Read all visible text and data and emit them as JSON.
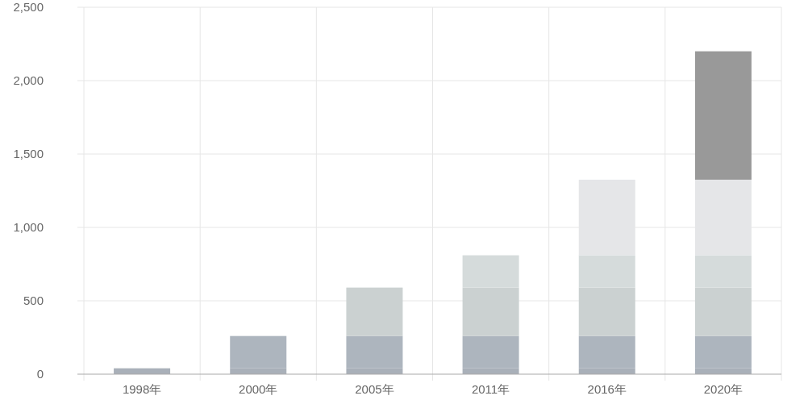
{
  "chart_data": {
    "type": "bar",
    "stacked": true,
    "grid": true,
    "categories": [
      "1998年",
      "2000年",
      "2005年",
      "2011年",
      "2016年",
      "2020年"
    ],
    "series": [
      {
        "color": "#a9b0b9",
        "values": [
          40,
          40,
          40,
          40,
          40,
          40
        ]
      },
      {
        "color": "#adb5be",
        "values": [
          null,
          220,
          220,
          220,
          220,
          220
        ]
      },
      {
        "color": "#cbd1d1",
        "values": [
          null,
          null,
          330,
          330,
          330,
          330
        ]
      },
      {
        "color": "#d5dbdb",
        "values": [
          null,
          null,
          null,
          220,
          220,
          220
        ]
      },
      {
        "color": "#e5e6e8",
        "values": [
          null,
          null,
          null,
          null,
          515,
          515
        ]
      },
      {
        "color": "#999999",
        "values": [
          null,
          null,
          null,
          null,
          null,
          875
        ]
      }
    ],
    "ylim": [
      0,
      2500
    ],
    "yticks": [
      {
        "value": 0,
        "label": "0"
      },
      {
        "value": 500,
        "label": "500"
      },
      {
        "value": 1000,
        "label": "1,000"
      },
      {
        "value": 1500,
        "label": "1,500"
      },
      {
        "value": 2000,
        "label": "2,000"
      },
      {
        "value": 2500,
        "label": "2,500"
      }
    ]
  }
}
